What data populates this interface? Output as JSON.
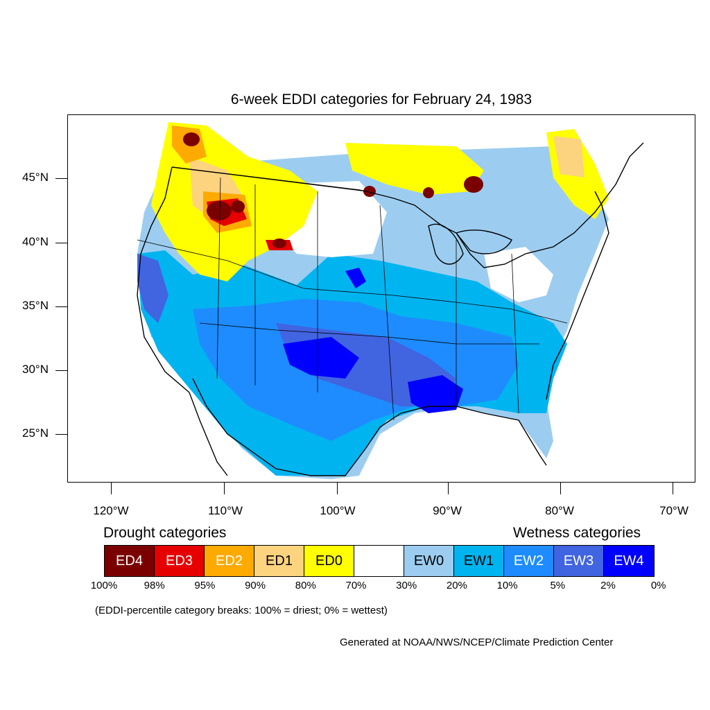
{
  "title": "6-week EDDI categories for February 24, 1983",
  "map": {
    "lat_labels": [
      "45°N",
      "40°N",
      "35°N",
      "30°N",
      "25°N"
    ],
    "lon_labels": [
      "120°W",
      "110°W",
      "100°W",
      "90°W",
      "80°W",
      "70°W"
    ]
  },
  "legend": {
    "drought_heading": "Drought categories",
    "wetness_heading": "Wetness categories",
    "categories": [
      {
        "label": "ED4",
        "color": "#7a0000",
        "text_color": "#ffffff"
      },
      {
        "label": "ED3",
        "color": "#e60000",
        "text_color": "#ffffff"
      },
      {
        "label": "ED2",
        "color": "#ffaa00",
        "text_color": "#ffffff"
      },
      {
        "label": "ED1",
        "color": "#fcd37f",
        "text_color": "#000000"
      },
      {
        "label": "ED0",
        "color": "#ffff00",
        "text_color": "#000000"
      },
      {
        "label": "",
        "color": "#ffffff",
        "text_color": "#000000"
      },
      {
        "label": "EW0",
        "color": "#9ccdf0",
        "text_color": "#000000"
      },
      {
        "label": "EW1",
        "color": "#00b4f0",
        "text_color": "#000000"
      },
      {
        "label": "EW2",
        "color": "#1e8cff",
        "text_color": "#ffffff"
      },
      {
        "label": "EW3",
        "color": "#4164e1",
        "text_color": "#ffffff"
      },
      {
        "label": "EW4",
        "color": "#0000ff",
        "text_color": "#ffffff"
      }
    ],
    "breaks": [
      "100%",
      "98%",
      "95%",
      "90%",
      "80%",
      "70%",
      "30%",
      "20%",
      "10%",
      "5%",
      "2%",
      "0%"
    ],
    "note": "(EDDI-percentile category breaks: 100% = driest; 0% = wettest)"
  },
  "credit": "Generated at NOAA/NWS/NCEP/Climate Prediction Center"
}
